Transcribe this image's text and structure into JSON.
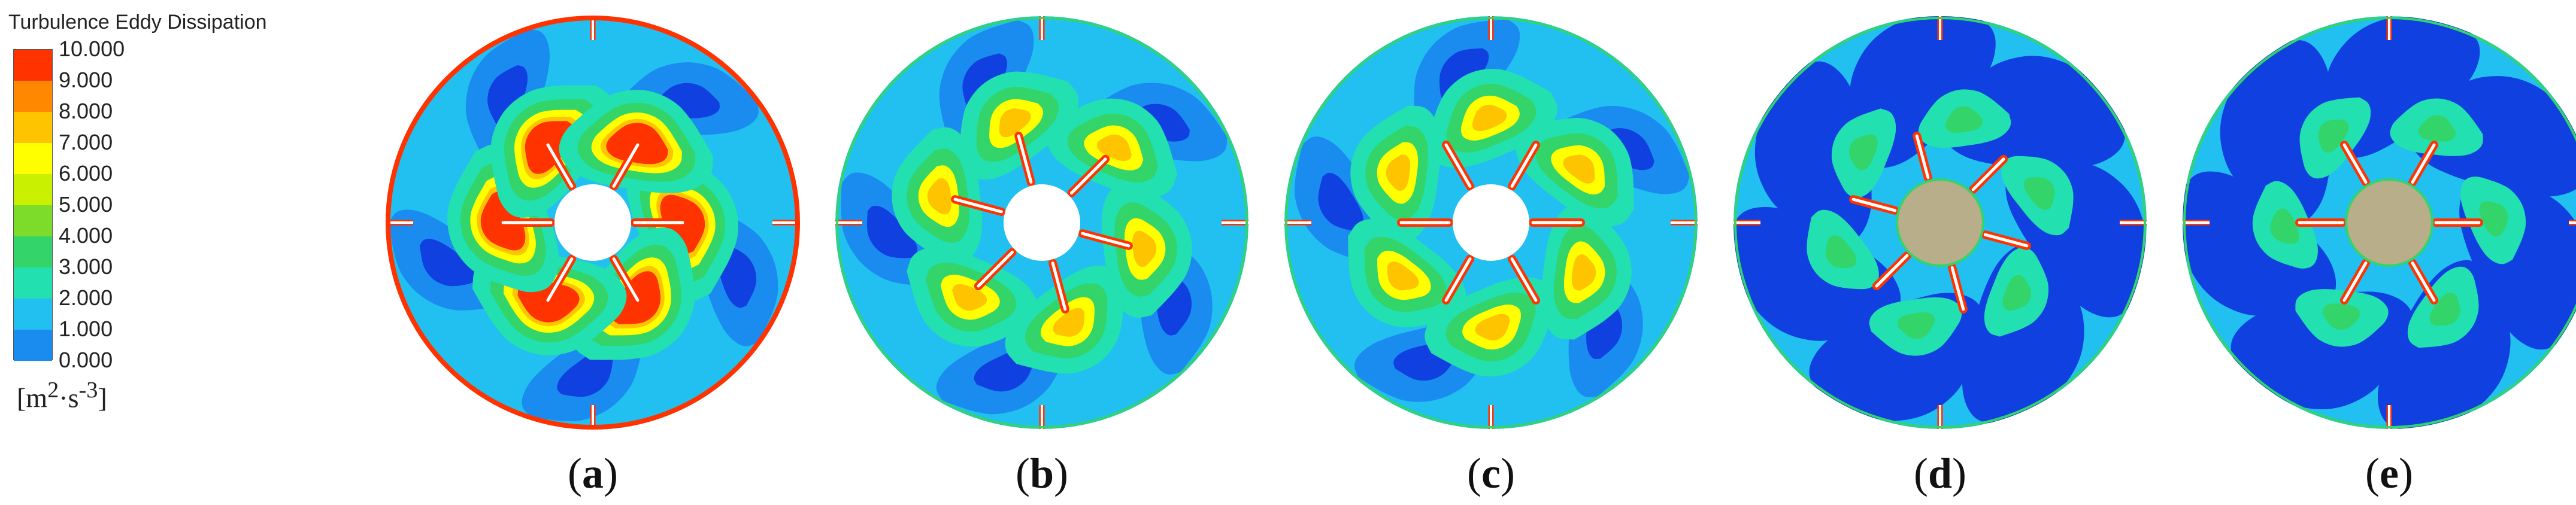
{
  "legend": {
    "title": "Turbulence Eddy Dissipation",
    "ticks": [
      "10.000",
      "9.000",
      "8.000",
      "7.000",
      "6.000",
      "5.000",
      "4.000",
      "3.000",
      "2.000",
      "1.000",
      "0.000"
    ],
    "colors": [
      "#ff3300",
      "#ff8800",
      "#ffc400",
      "#ffff00",
      "#c8f000",
      "#7ddc2a",
      "#33d46a",
      "#22e0b0",
      "#22c0f0",
      "#1a8cf0",
      "#1040e0"
    ],
    "unit_open": "[m",
    "unit_sup1": "2",
    "unit_mid": "·s",
    "unit_sup2": "-3",
    "unit_close": "]"
  },
  "panels": [
    {
      "paren_open": "(",
      "letter": "a",
      "paren_close": ")",
      "hub": "hollow",
      "intensity": "high"
    },
    {
      "paren_open": "(",
      "letter": "b",
      "paren_close": ")",
      "hub": "hollow",
      "intensity": "medium"
    },
    {
      "paren_open": "(",
      "letter": "c",
      "paren_close": ")",
      "hub": "hollow",
      "intensity": "medium"
    },
    {
      "paren_open": "(",
      "letter": "d",
      "paren_close": ")",
      "hub": "solid",
      "intensity": "low"
    },
    {
      "paren_open": "(",
      "letter": "e",
      "paren_close": ")",
      "hub": "solid",
      "intensity": "low"
    }
  ],
  "colors": {
    "deep_blue": "#1040e0",
    "blue": "#1a8cf0",
    "cyan": "#22c0f0",
    "teal": "#22e0b0",
    "green": "#33d46a",
    "yellow": "#ffff00",
    "orange": "#ffc400",
    "red": "#ff3300",
    "hub_solid": "#b8ae8a",
    "baffle": "#ffffff"
  }
}
